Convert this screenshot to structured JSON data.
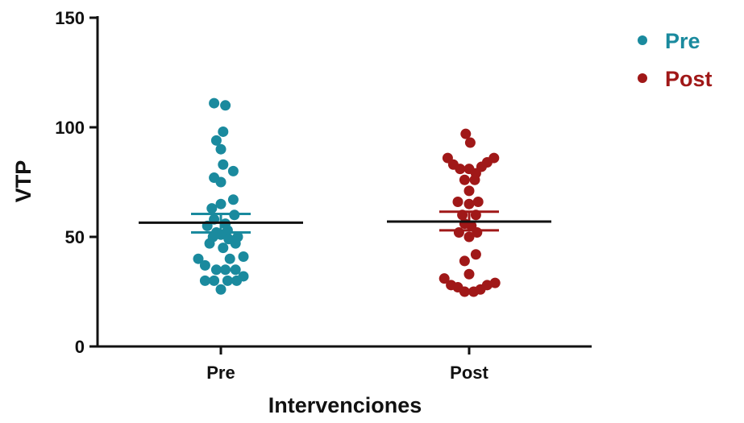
{
  "chart_data": {
    "type": "scatter",
    "xlabel": "Intervenciones",
    "ylabel": "VTP",
    "ylim": [
      0,
      150
    ],
    "yticks": [
      0,
      50,
      100,
      150
    ],
    "categories": [
      "Pre",
      "Post"
    ],
    "grid": false,
    "legend_position": "top-right",
    "series": [
      {
        "name": "Pre",
        "color": "#1a8a9e",
        "mean": 56.5,
        "sem_low": 52,
        "sem_high": 60.5,
        "points": [
          {
            "offset": -0.3,
            "y": 111
          },
          {
            "offset": 0.2,
            "y": 110
          },
          {
            "offset": 0.1,
            "y": 98
          },
          {
            "offset": -0.2,
            "y": 94
          },
          {
            "offset": 0.0,
            "y": 90
          },
          {
            "offset": 0.1,
            "y": 83
          },
          {
            "offset": 0.55,
            "y": 80
          },
          {
            "offset": -0.3,
            "y": 77
          },
          {
            "offset": 0.0,
            "y": 75
          },
          {
            "offset": 0.55,
            "y": 67
          },
          {
            "offset": 0.0,
            "y": 65
          },
          {
            "offset": -0.4,
            "y": 63
          },
          {
            "offset": 0.6,
            "y": 60
          },
          {
            "offset": -0.3,
            "y": 58
          },
          {
            "offset": 0.2,
            "y": 56
          },
          {
            "offset": -0.6,
            "y": 55
          },
          {
            "offset": 0.3,
            "y": 53
          },
          {
            "offset": -0.2,
            "y": 52
          },
          {
            "offset": 0.0,
            "y": 51
          },
          {
            "offset": -0.35,
            "y": 50
          },
          {
            "offset": 0.75,
            "y": 50
          },
          {
            "offset": 0.35,
            "y": 49
          },
          {
            "offset": -0.5,
            "y": 47
          },
          {
            "offset": 0.65,
            "y": 47
          },
          {
            "offset": 0.1,
            "y": 45
          },
          {
            "offset": 1.0,
            "y": 41
          },
          {
            "offset": -1.0,
            "y": 40
          },
          {
            "offset": 0.4,
            "y": 40
          },
          {
            "offset": -0.7,
            "y": 37
          },
          {
            "offset": -0.2,
            "y": 35
          },
          {
            "offset": 0.2,
            "y": 35
          },
          {
            "offset": 0.65,
            "y": 35
          },
          {
            "offset": 1.0,
            "y": 32
          },
          {
            "offset": -0.7,
            "y": 30
          },
          {
            "offset": -0.3,
            "y": 30
          },
          {
            "offset": 0.3,
            "y": 30
          },
          {
            "offset": 0.7,
            "y": 30
          },
          {
            "offset": 0.0,
            "y": 26
          }
        ]
      },
      {
        "name": "Post",
        "color": "#a01818",
        "mean": 57,
        "sem_low": 53,
        "sem_high": 61.5,
        "points": [
          {
            "offset": -0.15,
            "y": 97
          },
          {
            "offset": 0.05,
            "y": 93
          },
          {
            "offset": -0.95,
            "y": 86
          },
          {
            "offset": 1.1,
            "y": 86
          },
          {
            "offset": 0.8,
            "y": 84
          },
          {
            "offset": -0.7,
            "y": 83
          },
          {
            "offset": 0.55,
            "y": 82
          },
          {
            "offset": -0.4,
            "y": 81
          },
          {
            "offset": 0.0,
            "y": 81
          },
          {
            "offset": 0.3,
            "y": 79
          },
          {
            "offset": -0.2,
            "y": 76
          },
          {
            "offset": 0.25,
            "y": 76
          },
          {
            "offset": 0.0,
            "y": 71
          },
          {
            "offset": -0.5,
            "y": 66
          },
          {
            "offset": 0.4,
            "y": 66
          },
          {
            "offset": 0.0,
            "y": 65
          },
          {
            "offset": -0.3,
            "y": 60
          },
          {
            "offset": 0.3,
            "y": 60
          },
          {
            "offset": -0.2,
            "y": 56
          },
          {
            "offset": 0.1,
            "y": 55
          },
          {
            "offset": -0.45,
            "y": 52
          },
          {
            "offset": 0.35,
            "y": 52
          },
          {
            "offset": 0.0,
            "y": 50
          },
          {
            "offset": 0.3,
            "y": 42
          },
          {
            "offset": -0.2,
            "y": 39
          },
          {
            "offset": 0.0,
            "y": 33
          },
          {
            "offset": -1.1,
            "y": 31
          },
          {
            "offset": 1.15,
            "y": 29
          },
          {
            "offset": -0.8,
            "y": 28
          },
          {
            "offset": 0.8,
            "y": 28
          },
          {
            "offset": -0.5,
            "y": 27
          },
          {
            "offset": 0.5,
            "y": 26
          },
          {
            "offset": -0.2,
            "y": 25
          },
          {
            "offset": 0.2,
            "y": 25
          }
        ]
      }
    ]
  }
}
